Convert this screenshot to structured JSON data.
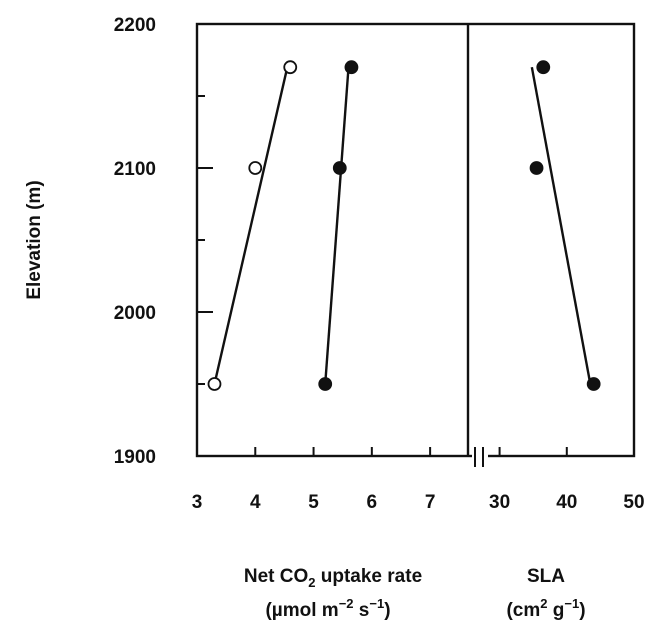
{
  "chart_data": {
    "type": "scatter",
    "y_axis": {
      "label": "Elevation (m)",
      "range": [
        1900,
        2200
      ],
      "major_ticks": [
        1900,
        2000,
        2100,
        2200
      ],
      "minor_step": 50
    },
    "panels": [
      {
        "id": "net-co2",
        "x_range": [
          3,
          7.65
        ],
        "x_ticks": [
          3,
          4,
          5,
          6,
          7
        ],
        "xlabel_line1": [
          "Net CO",
          "2",
          " uptake rate"
        ],
        "xlabel_line2": [
          "(µmol m",
          "−2",
          " s",
          "−1",
          ")"
        ],
        "series": [
          {
            "marker": "open-circle",
            "points": [
              [
                3.3,
                1950
              ],
              [
                4.0,
                2100
              ],
              [
                4.6,
                2170
              ]
            ],
            "fit": [
              [
                3.3,
                1950
              ],
              [
                4.55,
                2170
              ]
            ]
          },
          {
            "marker": "filled-circle",
            "points": [
              [
                5.2,
                1950
              ],
              [
                5.45,
                2100
              ],
              [
                5.65,
                2170
              ]
            ],
            "fit": [
              [
                5.2,
                1950
              ],
              [
                5.6,
                2170
              ]
            ]
          }
        ]
      },
      {
        "id": "sla",
        "x_range": [
          25.3,
          50
        ],
        "x_ticks": [
          30,
          40,
          50
        ],
        "axis_break": true,
        "xlabel_line1": [
          "SLA"
        ],
        "xlabel_line2": [
          "(cm",
          "2",
          " g",
          "−1",
          ")"
        ],
        "series": [
          {
            "marker": "filled-circle",
            "points": [
              [
                35.5,
                2100
              ],
              [
                36.5,
                2170
              ],
              [
                44.0,
                1950
              ]
            ],
            "fit": [
              [
                34.8,
                2170
              ],
              [
                43.5,
                1950
              ]
            ]
          }
        ]
      }
    ]
  }
}
